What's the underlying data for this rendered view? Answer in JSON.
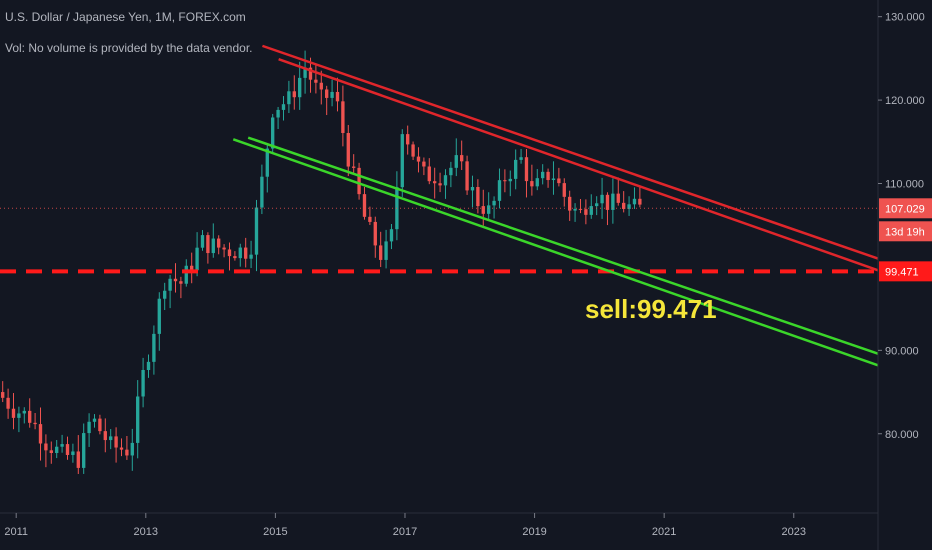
{
  "header": {
    "title": "U.S. Dollar / Japanese Yen, 1M, FOREX.com",
    "volume_note": "Vol: No volume is provided by the data vendor."
  },
  "colors": {
    "background": "#131722",
    "up": "#26a69a",
    "down": "#ef5350",
    "resistance": "#e0262b",
    "support": "#3bd62a",
    "level": "#ff1a1a",
    "annotation": "#f5e63a",
    "price_badge": "#ef5350",
    "countdown_badge": "#ef5350"
  },
  "chart_data": {
    "type": "candlestick",
    "symbol": "U.S. Dollar / Japanese Yen",
    "interval": "1M",
    "source": "FOREX.com",
    "ylim": [
      70.5,
      132
    ],
    "xlim": [
      2010.75,
      2024.3
    ],
    "y_ticks": [
      "80.000",
      "90.000",
      "110.000",
      "120.000",
      "130.000"
    ],
    "x_ticks": [
      "2011",
      "2013",
      "2015",
      "2017",
      "2019",
      "2021",
      "2023"
    ],
    "x_tick_values": [
      2011,
      2013,
      2015,
      2017,
      2019,
      2021,
      2023
    ],
    "price_anchor": [
      [
        2010.75,
        85
      ],
      [
        2011.0,
        83
      ],
      [
        2011.25,
        82
      ],
      [
        2011.5,
        79
      ],
      [
        2011.75,
        77.5
      ],
      [
        2012.0,
        77
      ],
      [
        2012.2,
        82
      ],
      [
        2012.5,
        78.5
      ],
      [
        2012.8,
        78
      ],
      [
        2013.0,
        87
      ],
      [
        2013.35,
        99
      ],
      [
        2013.6,
        98
      ],
      [
        2013.9,
        103
      ],
      [
        2014.3,
        102
      ],
      [
        2014.65,
        102
      ],
      [
        2014.85,
        111
      ],
      [
        2015.0,
        119
      ],
      [
        2015.25,
        120
      ],
      [
        2015.5,
        124
      ],
      [
        2015.75,
        120
      ],
      [
        2015.95,
        121
      ],
      [
        2016.2,
        112
      ],
      [
        2016.45,
        105
      ],
      [
        2016.7,
        101
      ],
      [
        2016.85,
        104
      ],
      [
        2017.0,
        117
      ],
      [
        2017.3,
        111
      ],
      [
        2017.6,
        111
      ],
      [
        2017.85,
        112.5
      ],
      [
        2018.15,
        108
      ],
      [
        2018.35,
        106.5
      ],
      [
        2018.6,
        111
      ],
      [
        2018.85,
        113
      ],
      [
        2019.0,
        109
      ],
      [
        2019.3,
        111.5
      ],
      [
        2019.6,
        107
      ],
      [
        2019.75,
        106.5
      ],
      [
        2019.95,
        109
      ],
      [
        2020.2,
        107.5
      ],
      [
        2020.4,
        107.5
      ],
      [
        2020.55,
        107
      ]
    ],
    "last_price": "107.029",
    "countdown": "13d 19h",
    "level_price": "99.471",
    "level_value": 99.471,
    "annotation": "sell:99.471",
    "trendlines": {
      "resistance": [
        {
          "from": [
            2014.8,
            126.5
          ],
          "to": [
            2024.3,
            101
          ]
        },
        {
          "from": [
            2015.05,
            124.9
          ],
          "to": [
            2024.3,
            99.6
          ]
        }
      ],
      "support": [
        {
          "from": [
            2014.35,
            115.3
          ],
          "to": [
            2024.3,
            88.2
          ]
        },
        {
          "from": [
            2014.58,
            115.5
          ],
          "to": [
            2024.3,
            89.6
          ]
        }
      ]
    },
    "grid": false
  }
}
